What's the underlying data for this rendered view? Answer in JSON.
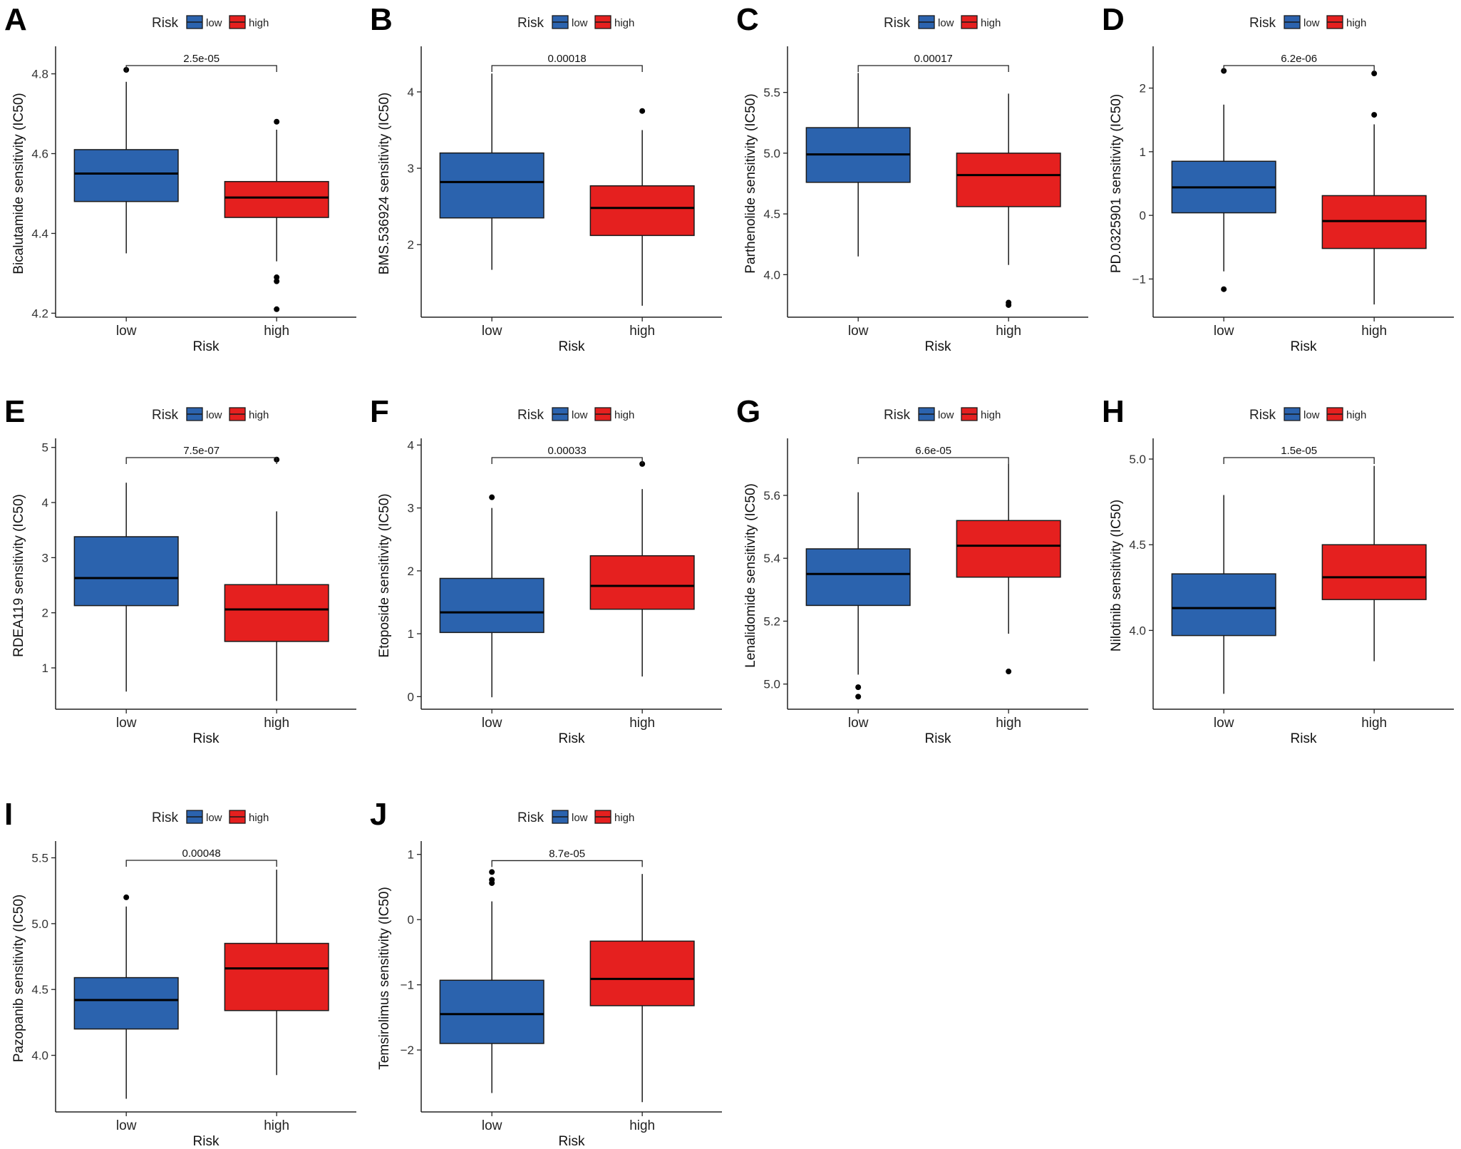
{
  "colors": {
    "low": "#2b63ae",
    "high": "#e5201f",
    "outline": "#1a1a1a"
  },
  "chart_data": [
    {
      "type": "box",
      "panel": "A",
      "legend_title": "Risk",
      "legend": [
        "low",
        "high"
      ],
      "categories": [
        "low",
        "high"
      ],
      "xlabel": "Risk",
      "ylabel": "Bicalutamide sensitivity (IC50)",
      "ylim": [
        4.19,
        4.86
      ],
      "yticks": [
        4.2,
        4.4,
        4.6,
        4.8
      ],
      "ytick_labels": [
        "4.2",
        "4.4",
        "4.6",
        "4.8"
      ],
      "pvalue": "2.5e-05",
      "boxes": [
        {
          "q1": 4.48,
          "median": 4.55,
          "q3": 4.61,
          "whisker_low": 4.35,
          "whisker_high": 4.78,
          "outliers": [
            4.81
          ]
        },
        {
          "q1": 4.44,
          "median": 4.49,
          "q3": 4.53,
          "whisker_low": 4.33,
          "whisker_high": 4.66,
          "outliers": [
            4.68,
            4.29,
            4.28,
            4.21
          ]
        }
      ]
    },
    {
      "type": "box",
      "panel": "B",
      "legend_title": "Risk",
      "legend": [
        "low",
        "high"
      ],
      "categories": [
        "low",
        "high"
      ],
      "xlabel": "Risk",
      "ylabel": "BMS.536924 sensitivity (IC50)",
      "ylim": [
        1.05,
        4.55
      ],
      "yticks": [
        2,
        3,
        4
      ],
      "ytick_labels": [
        "2",
        "3",
        "4"
      ],
      "pvalue": "0.00018",
      "boxes": [
        {
          "q1": 2.35,
          "median": 2.82,
          "q3": 3.2,
          "whisker_low": 1.67,
          "whisker_high": 4.24,
          "outliers": []
        },
        {
          "q1": 2.12,
          "median": 2.48,
          "q3": 2.77,
          "whisker_low": 1.2,
          "whisker_high": 3.5,
          "outliers": [
            3.75
          ]
        }
      ]
    },
    {
      "type": "box",
      "panel": "C",
      "legend_title": "Risk",
      "legend": [
        "low",
        "high"
      ],
      "categories": [
        "low",
        "high"
      ],
      "xlabel": "Risk",
      "ylabel": "Parthenolide sensitivity (IC50)",
      "ylim": [
        3.65,
        5.85
      ],
      "yticks": [
        4.0,
        4.5,
        5.0,
        5.5
      ],
      "ytick_labels": [
        "4.0",
        "4.5",
        "5.0",
        "5.5"
      ],
      "pvalue": "0.00017",
      "boxes": [
        {
          "q1": 4.76,
          "median": 4.99,
          "q3": 5.21,
          "whisker_low": 4.15,
          "whisker_high": 5.66,
          "outliers": []
        },
        {
          "q1": 4.56,
          "median": 4.82,
          "q3": 5.0,
          "whisker_low": 4.08,
          "whisker_high": 5.49,
          "outliers": [
            3.77,
            3.75
          ]
        }
      ]
    },
    {
      "type": "box",
      "panel": "D",
      "legend_title": "Risk",
      "legend": [
        "low",
        "high"
      ],
      "categories": [
        "low",
        "high"
      ],
      "xlabel": "Risk",
      "ylabel": "PD.0325901 sensitivity (IC50)",
      "ylim": [
        -1.6,
        2.6
      ],
      "yticks": [
        -1,
        0,
        1,
        2
      ],
      "ytick_labels": [
        "−1",
        "0",
        "1",
        "2"
      ],
      "pvalue": "6.2e-06",
      "boxes": [
        {
          "q1": 0.04,
          "median": 0.44,
          "q3": 0.85,
          "whisker_low": -0.88,
          "whisker_high": 1.74,
          "outliers": [
            2.27,
            -1.16
          ]
        },
        {
          "q1": -0.52,
          "median": -0.09,
          "q3": 0.31,
          "whisker_low": -1.4,
          "whisker_high": 1.43,
          "outliers": [
            2.23,
            1.58
          ]
        }
      ]
    },
    {
      "type": "box",
      "panel": "E",
      "legend_title": "Risk",
      "legend": [
        "low",
        "high"
      ],
      "categories": [
        "low",
        "high"
      ],
      "xlabel": "Risk",
      "ylabel": "RDEA119 sensitivity (IC50)",
      "ylim": [
        0.25,
        5.1
      ],
      "yticks": [
        1,
        2,
        3,
        4,
        5
      ],
      "ytick_labels": [
        "1",
        "2",
        "3",
        "4",
        "5"
      ],
      "pvalue": "7.5e-07",
      "boxes": [
        {
          "q1": 2.13,
          "median": 2.63,
          "q3": 3.38,
          "whisker_low": 0.57,
          "whisker_high": 4.36,
          "outliers": []
        },
        {
          "q1": 1.48,
          "median": 2.06,
          "q3": 2.51,
          "whisker_low": 0.4,
          "whisker_high": 3.84,
          "outliers": [
            4.78
          ]
        }
      ]
    },
    {
      "type": "box",
      "panel": "F",
      "legend_title": "Risk",
      "legend": [
        "low",
        "high"
      ],
      "categories": [
        "low",
        "high"
      ],
      "xlabel": "Risk",
      "ylabel": "Etoposide sensitivity (IC50)",
      "ylim": [
        -0.2,
        4.05
      ],
      "yticks": [
        0,
        1,
        2,
        3,
        4
      ],
      "ytick_labels": [
        "0",
        "1",
        "2",
        "3",
        "4"
      ],
      "pvalue": "0.00033",
      "boxes": [
        {
          "q1": 1.02,
          "median": 1.34,
          "q3": 1.88,
          "whisker_low": -0.01,
          "whisker_high": 3.0,
          "outliers": [
            3.17
          ]
        },
        {
          "q1": 1.39,
          "median": 1.76,
          "q3": 2.24,
          "whisker_low": 0.32,
          "whisker_high": 3.3,
          "outliers": [
            3.7
          ]
        }
      ]
    },
    {
      "type": "box",
      "panel": "G",
      "legend_title": "Risk",
      "legend": [
        "low",
        "high"
      ],
      "categories": [
        "low",
        "high"
      ],
      "xlabel": "Risk",
      "ylabel": "Lenalidomide sensitivity (IC50)",
      "ylim": [
        4.92,
        5.77
      ],
      "yticks": [
        5.0,
        5.2,
        5.4,
        5.6
      ],
      "ytick_labels": [
        "5.0",
        "5.2",
        "5.4",
        "5.6"
      ],
      "pvalue": "6.6e-05",
      "boxes": [
        {
          "q1": 5.25,
          "median": 5.35,
          "q3": 5.43,
          "whisker_low": 5.03,
          "whisker_high": 5.61,
          "outliers": [
            4.99,
            4.96
          ]
        },
        {
          "q1": 5.34,
          "median": 5.44,
          "q3": 5.52,
          "whisker_low": 5.16,
          "whisker_high": 5.7,
          "outliers": [
            5.04
          ]
        }
      ]
    },
    {
      "type": "box",
      "panel": "H",
      "legend_title": "Risk",
      "legend": [
        "low",
        "high"
      ],
      "categories": [
        "low",
        "high"
      ],
      "xlabel": "Risk",
      "ylabel": "Nilotinib sensitivity (IC50)",
      "ylim": [
        3.54,
        5.1
      ],
      "yticks": [
        4.0,
        4.5,
        5.0
      ],
      "ytick_labels": [
        "4.0",
        "4.5",
        "5.0"
      ],
      "pvalue": "1.5e-05",
      "boxes": [
        {
          "q1": 3.97,
          "median": 4.13,
          "q3": 4.33,
          "whisker_low": 3.63,
          "whisker_high": 4.79,
          "outliers": []
        },
        {
          "q1": 4.18,
          "median": 4.31,
          "q3": 4.5,
          "whisker_low": 3.82,
          "whisker_high": 4.96,
          "outliers": []
        }
      ]
    },
    {
      "type": "box",
      "panel": "I",
      "legend_title": "Risk",
      "legend": [
        "low",
        "high"
      ],
      "categories": [
        "low",
        "high"
      ],
      "xlabel": "Risk",
      "ylabel": "Pazopanib sensitivity (IC50)",
      "ylim": [
        3.57,
        5.6
      ],
      "yticks": [
        4.0,
        4.5,
        5.0,
        5.5
      ],
      "ytick_labels": [
        "4.0",
        "4.5",
        "5.0",
        "5.5"
      ],
      "pvalue": "0.00048",
      "boxes": [
        {
          "q1": 4.2,
          "median": 4.42,
          "q3": 4.59,
          "whisker_low": 3.67,
          "whisker_high": 5.13,
          "outliers": [
            5.2
          ]
        },
        {
          "q1": 4.34,
          "median": 4.66,
          "q3": 4.85,
          "whisker_low": 3.85,
          "whisker_high": 5.41,
          "outliers": []
        }
      ]
    },
    {
      "type": "box",
      "panel": "J",
      "legend_title": "Risk",
      "legend": [
        "low",
        "high"
      ],
      "categories": [
        "low",
        "high"
      ],
      "xlabel": "Risk",
      "ylabel": "Temsirolimus sensitivity (IC50)",
      "ylim": [
        -2.95,
        1.15
      ],
      "yticks": [
        -2,
        -1,
        0,
        1
      ],
      "ytick_labels": [
        "−2",
        "−1",
        "0",
        "1"
      ],
      "pvalue": "8.7e-05",
      "boxes": [
        {
          "q1": -1.9,
          "median": -1.45,
          "q3": -0.93,
          "whisker_low": -2.66,
          "whisker_high": 0.28,
          "outliers": [
            0.73,
            0.61,
            0.56
          ]
        },
        {
          "q1": -1.32,
          "median": -0.91,
          "q3": -0.33,
          "whisker_low": -2.8,
          "whisker_high": 0.7,
          "outliers": []
        }
      ]
    }
  ]
}
